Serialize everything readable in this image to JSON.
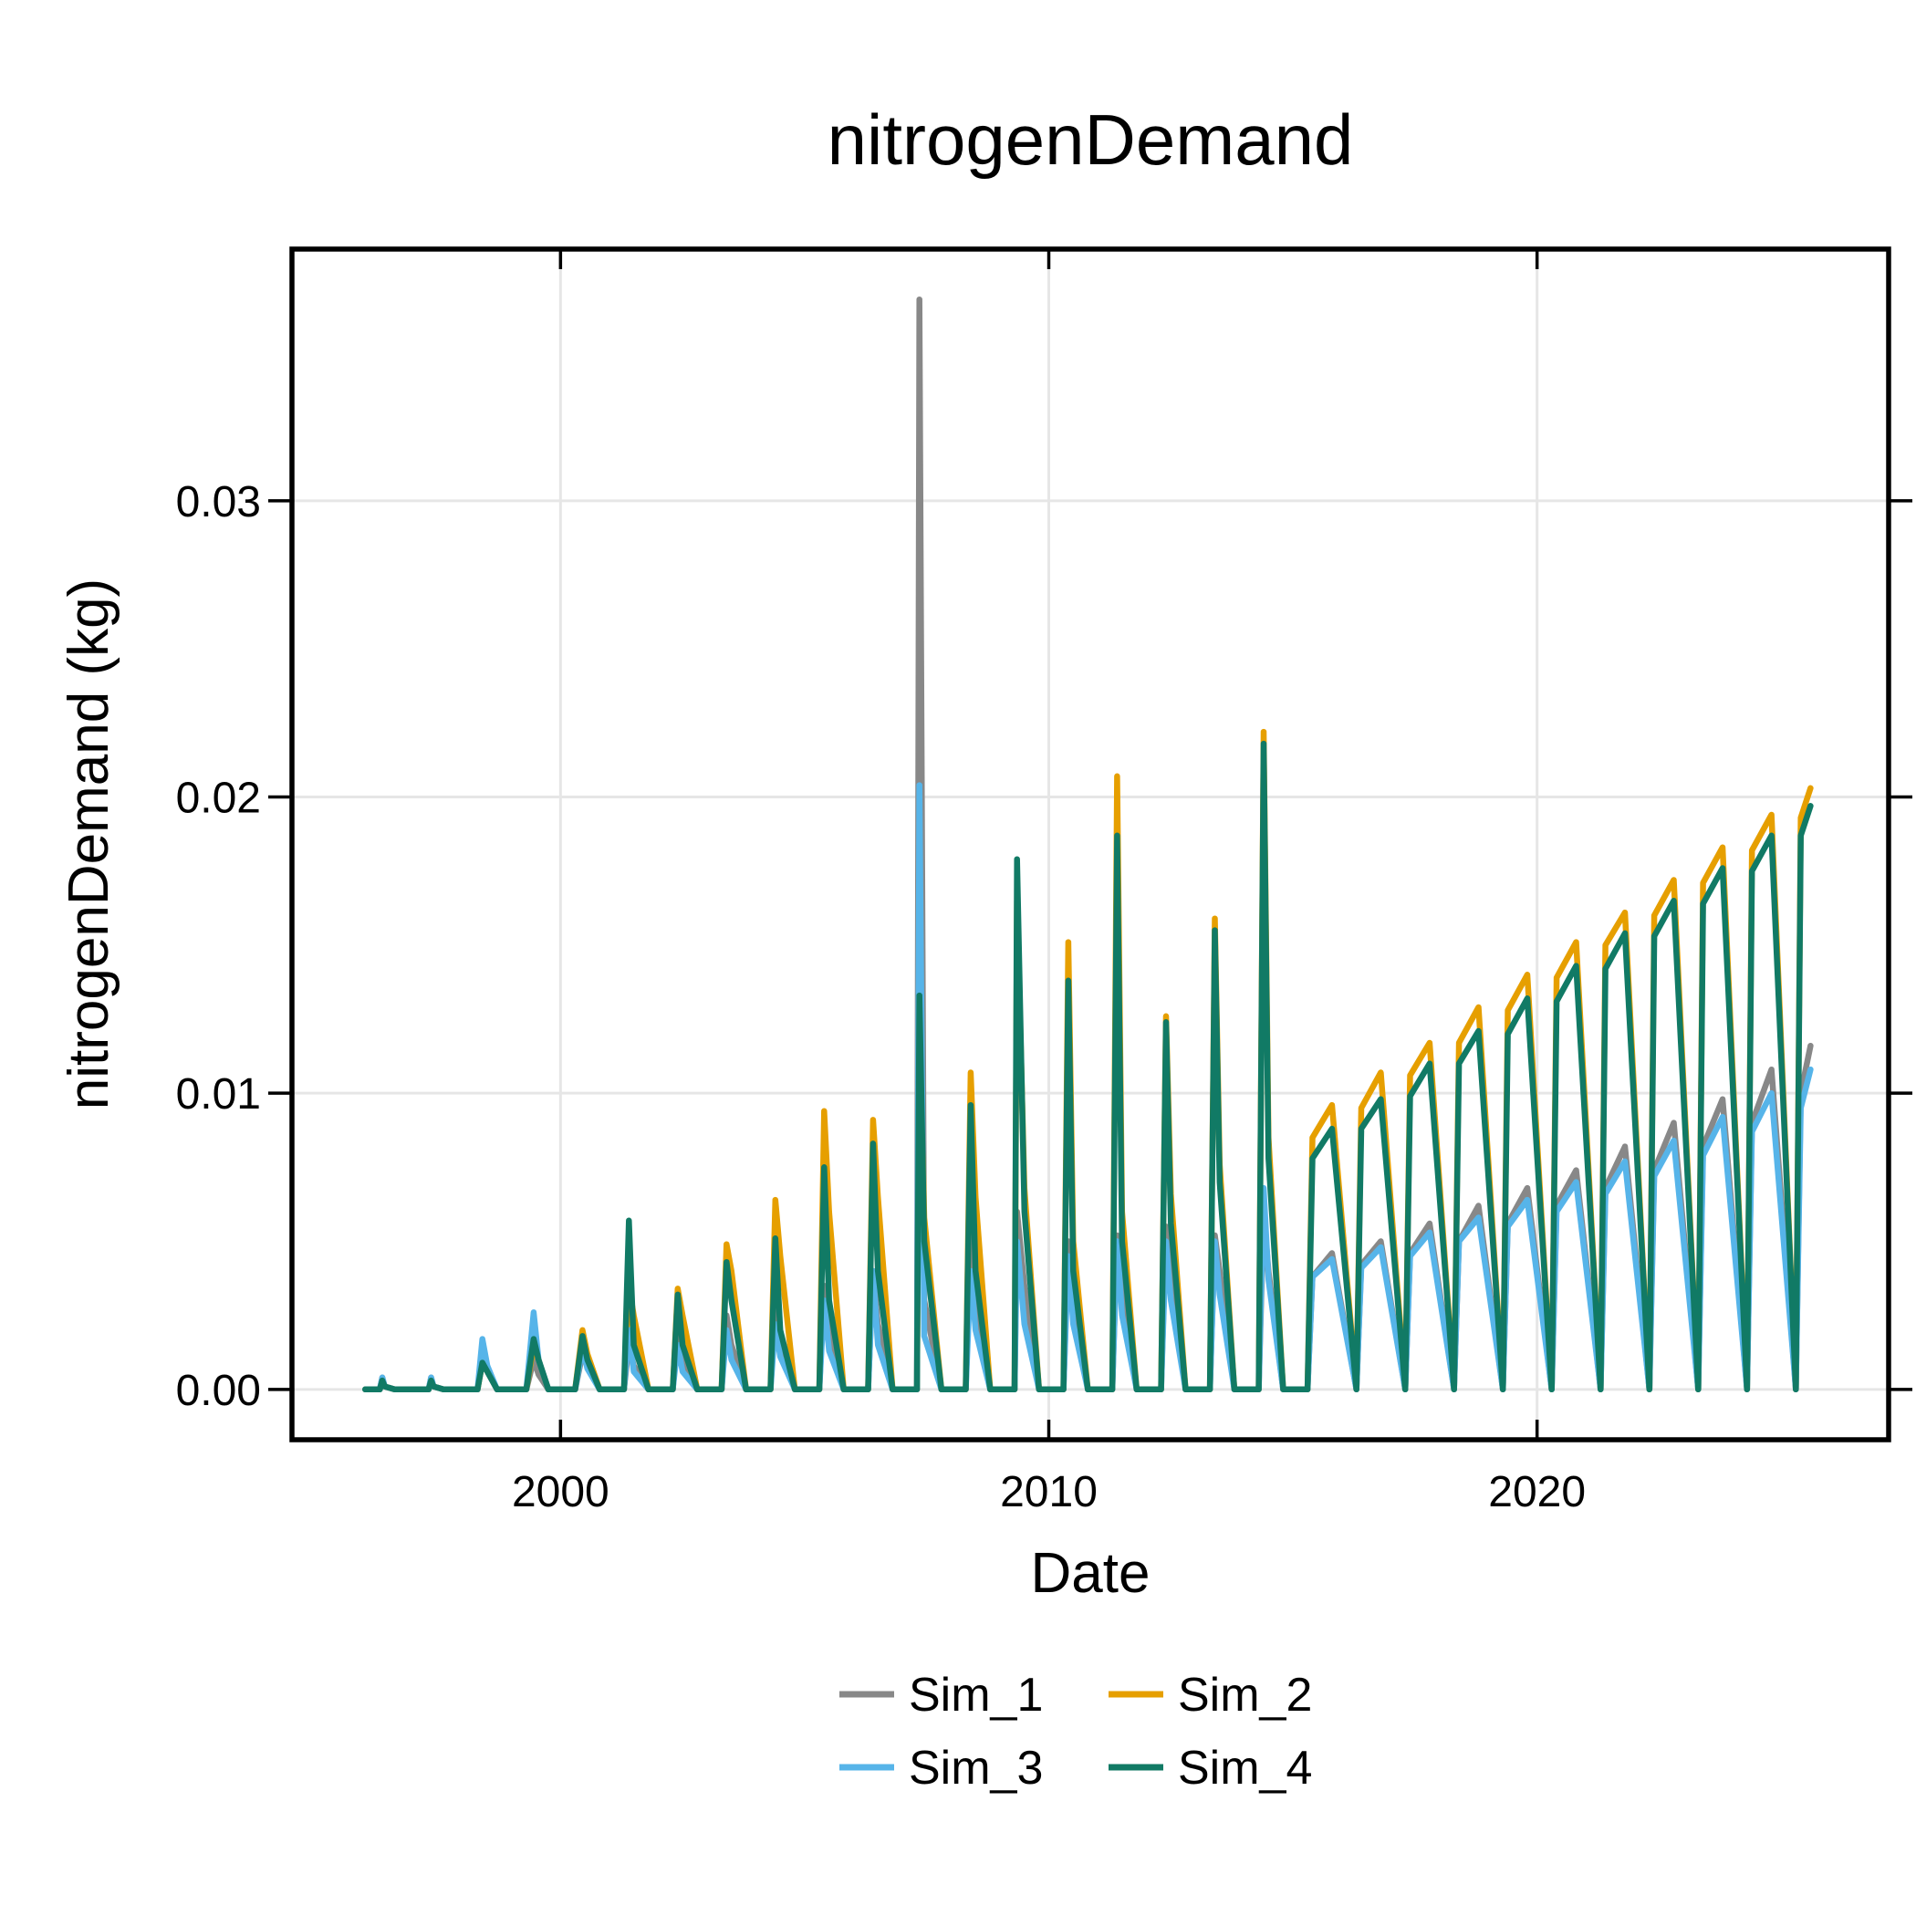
{
  "chart_data": {
    "type": "line",
    "title": "nitrogenDemand",
    "xlabel": "Date",
    "ylabel": "nitrogenDemand (kg)",
    "x_ticks": [
      2000,
      2010,
      2020
    ],
    "y_ticks": [
      "0.00",
      "0.01",
      "0.02",
      "0.03"
    ],
    "xlim": [
      1994.5,
      2027.2
    ],
    "ylim": [
      -0.0017,
      0.0385
    ],
    "grid": true,
    "legend_position": "bottom-center",
    "series": [
      {
        "name": "Sim_1",
        "color": "#888888",
        "x": [
          1996.0,
          1996.3,
          1996.35,
          1996.4,
          1996.6,
          1997.3,
          1997.35,
          1997.4,
          1997.6,
          1998.3,
          1998.4,
          1998.5,
          1998.7,
          1999.3,
          1999.45,
          1999.55,
          1999.75,
          2000.3,
          2000.45,
          2000.55,
          2000.8,
          2001.3,
          2001.4,
          2001.5,
          2001.8,
          2002.3,
          2002.4,
          2002.5,
          2002.8,
          2003.3,
          2003.4,
          2003.5,
          2003.8,
          2004.3,
          2004.4,
          2004.5,
          2004.8,
          2005.3,
          2005.4,
          2005.5,
          2005.8,
          2006.3,
          2006.4,
          2006.5,
          2006.8,
          2007.3,
          2007.35,
          2007.45,
          2007.8,
          2008.3,
          2008.4,
          2008.5,
          2008.8,
          2009.3,
          2009.35,
          2009.5,
          2009.8,
          2010.3,
          2010.4,
          2010.5,
          2010.8,
          2011.3,
          2011.4,
          2011.5,
          2011.8,
          2012.3,
          2012.4,
          2012.5,
          2012.8,
          2013.3,
          2013.4,
          2013.5,
          2013.8,
          2014.3,
          2014.4,
          2014.5,
          2014.8,
          2015.3,
          2015.4,
          2015.8,
          2016.3,
          2016.4,
          2016.8,
          2017.3,
          2017.4,
          2017.8,
          2018.3,
          2018.4,
          2018.8,
          2019.3,
          2019.4,
          2019.8,
          2020.3,
          2020.4,
          2020.8,
          2021.3,
          2021.4,
          2021.8,
          2022.3,
          2022.4,
          2022.8,
          2023.3,
          2023.4,
          2023.8,
          2024.3,
          2024.4,
          2024.8,
          2025.3,
          2025.4,
          2025.6
        ],
        "y": [
          0,
          0,
          0.0004,
          0.0001,
          0,
          0,
          0.0004,
          0.0001,
          0,
          0,
          0.001,
          0.0006,
          0,
          0,
          0.001,
          0.0005,
          0,
          0,
          0.0012,
          0.0008,
          0,
          0,
          0.0015,
          0.0008,
          0,
          0,
          0.002,
          0.001,
          0,
          0,
          0.0025,
          0.0015,
          0,
          0,
          0.003,
          0.0018,
          0,
          0,
          0.0035,
          0.002,
          0,
          0,
          0.004,
          0.0022,
          0,
          0,
          0.0368,
          0.003,
          0,
          0,
          0.0055,
          0.0028,
          0,
          0,
          0.006,
          0.0035,
          0,
          0,
          0.005,
          0.003,
          0,
          0,
          0.0052,
          0.0035,
          0,
          0,
          0.0055,
          0.0038,
          0,
          0,
          0.0052,
          0.004,
          0,
          0,
          0.006,
          0.004,
          0,
          0,
          0.0038,
          0.0046,
          0,
          0.0042,
          0.005,
          0,
          0.0046,
          0.0056,
          0,
          0.005,
          0.0062,
          0,
          0.0056,
          0.0068,
          0,
          0.0062,
          0.0074,
          0,
          0.0068,
          0.0082,
          0,
          0.0074,
          0.009,
          0,
          0.0082,
          0.0098,
          0,
          0.009,
          0.0108,
          0,
          0.01,
          0.0116
        ]
      },
      {
        "name": "Sim_2",
        "color": "#E69F00",
        "x": [
          1996.0,
          1996.3,
          1996.35,
          1996.4,
          1996.6,
          1997.3,
          1997.35,
          1997.4,
          1997.6,
          1998.3,
          1998.4,
          1998.5,
          1998.7,
          1999.3,
          1999.45,
          1999.55,
          1999.75,
          2000.3,
          2000.45,
          2000.55,
          2000.8,
          2001.3,
          2001.4,
          2001.5,
          2001.8,
          2002.3,
          2002.4,
          2002.5,
          2002.8,
          2003.3,
          2003.4,
          2003.5,
          2003.8,
          2004.3,
          2004.4,
          2004.5,
          2004.8,
          2005.3,
          2005.4,
          2005.5,
          2005.8,
          2006.3,
          2006.4,
          2006.5,
          2006.8,
          2007.3,
          2007.35,
          2007.45,
          2007.8,
          2008.3,
          2008.4,
          2008.5,
          2008.8,
          2009.3,
          2009.35,
          2009.5,
          2009.8,
          2010.3,
          2010.4,
          2010.5,
          2010.8,
          2011.3,
          2011.4,
          2011.5,
          2011.8,
          2012.3,
          2012.4,
          2012.5,
          2012.8,
          2013.3,
          2013.4,
          2013.5,
          2013.8,
          2014.3,
          2014.4,
          2014.5,
          2014.8,
          2015.3,
          2015.4,
          2015.8,
          2016.3,
          2016.4,
          2016.8,
          2017.3,
          2017.4,
          2017.8,
          2018.3,
          2018.4,
          2018.8,
          2019.3,
          2019.4,
          2019.8,
          2020.3,
          2020.4,
          2020.8,
          2021.3,
          2021.4,
          2021.8,
          2022.3,
          2022.4,
          2022.8,
          2023.3,
          2023.4,
          2023.8,
          2024.3,
          2024.4,
          2024.8,
          2025.3,
          2025.4,
          2025.6
        ],
        "y": [
          0,
          0,
          0.0003,
          0.0001,
          0,
          0,
          0.0003,
          0.0001,
          0,
          0,
          0.0009,
          0.0007,
          0,
          0,
          0.0015,
          0.001,
          0,
          0,
          0.002,
          0.0012,
          0,
          0,
          0.0035,
          0.0025,
          0,
          0,
          0.0034,
          0.0025,
          0,
          0,
          0.0049,
          0.004,
          0,
          0,
          0.0064,
          0.0045,
          0,
          0,
          0.0094,
          0.006,
          0,
          0,
          0.0091,
          0.0065,
          0,
          0,
          0.0125,
          0.0058,
          0,
          0,
          0.0107,
          0.0065,
          0,
          0,
          0.0165,
          0.0068,
          0,
          0,
          0.0151,
          0.005,
          0,
          0,
          0.0207,
          0.006,
          0,
          0,
          0.0126,
          0.0066,
          0,
          0,
          0.0159,
          0.0076,
          0,
          0,
          0.0222,
          0.0085,
          0,
          0,
          0.0085,
          0.0096,
          0,
          0.0095,
          0.0107,
          0,
          0.0106,
          0.0117,
          0,
          0.0117,
          0.0129,
          0,
          0.0128,
          0.014,
          0,
          0.0139,
          0.0151,
          0,
          0.015,
          0.0161,
          0,
          0.016,
          0.0172,
          0,
          0.0171,
          0.0183,
          0,
          0.0182,
          0.0194,
          0,
          0.0193,
          0.0203
        ]
      },
      {
        "name": "Sim_3",
        "color": "#56B4E9",
        "x": [
          1996.0,
          1996.3,
          1996.35,
          1996.4,
          1996.6,
          1997.3,
          1997.35,
          1997.4,
          1997.6,
          1998.3,
          1998.4,
          1998.5,
          1998.7,
          1999.3,
          1999.45,
          1999.55,
          1999.75,
          2000.3,
          2000.45,
          2000.55,
          2000.8,
          2001.3,
          2001.4,
          2001.5,
          2001.8,
          2002.3,
          2002.4,
          2002.5,
          2002.8,
          2003.3,
          2003.4,
          2003.5,
          2003.8,
          2004.3,
          2004.4,
          2004.5,
          2004.8,
          2005.3,
          2005.4,
          2005.5,
          2005.8,
          2006.3,
          2006.4,
          2006.5,
          2006.8,
          2007.3,
          2007.35,
          2007.45,
          2007.8,
          2008.3,
          2008.4,
          2008.5,
          2008.8,
          2009.3,
          2009.35,
          2009.5,
          2009.8,
          2010.3,
          2010.4,
          2010.5,
          2010.8,
          2011.3,
          2011.4,
          2011.5,
          2011.8,
          2012.3,
          2012.4,
          2012.5,
          2012.8,
          2013.3,
          2013.4,
          2013.5,
          2013.8,
          2014.3,
          2014.4,
          2014.5,
          2014.8,
          2015.3,
          2015.4,
          2015.8,
          2016.3,
          2016.4,
          2016.8,
          2017.3,
          2017.4,
          2017.8,
          2018.3,
          2018.4,
          2018.8,
          2019.3,
          2019.4,
          2019.8,
          2020.3,
          2020.4,
          2020.8,
          2021.3,
          2021.4,
          2021.8,
          2022.3,
          2022.4,
          2022.8,
          2023.3,
          2023.4,
          2023.8,
          2024.3,
          2024.4,
          2024.8,
          2025.3,
          2025.4,
          2025.6
        ],
        "y": [
          0,
          0,
          0.0004,
          0.0001,
          0,
          0,
          0.0004,
          0.0001,
          0,
          0,
          0.0017,
          0.0008,
          0,
          0,
          0.0026,
          0.001,
          0,
          0,
          0.0014,
          0.0007,
          0,
          0,
          0.002,
          0.0006,
          0,
          0,
          0.0015,
          0.0006,
          0,
          0,
          0.002,
          0.001,
          0,
          0,
          0.0022,
          0.0011,
          0,
          0,
          0.003,
          0.0013,
          0,
          0,
          0.004,
          0.0015,
          0,
          0,
          0.0204,
          0.0018,
          0,
          0,
          0.004,
          0.002,
          0,
          0,
          0.005,
          0.0022,
          0,
          0,
          0.0045,
          0.0022,
          0,
          0,
          0.005,
          0.0025,
          0,
          0,
          0.005,
          0.003,
          0,
          0,
          0.005,
          0.0032,
          0,
          0,
          0.0068,
          0.0037,
          0,
          0,
          0.0038,
          0.0044,
          0,
          0.0041,
          0.0048,
          0,
          0.0045,
          0.0053,
          0,
          0.005,
          0.0058,
          0,
          0.0055,
          0.0064,
          0,
          0.006,
          0.007,
          0,
          0.0066,
          0.0077,
          0,
          0.0072,
          0.0084,
          0,
          0.0079,
          0.0092,
          0,
          0.0087,
          0.01,
          0,
          0.0095,
          0.0108
        ]
      },
      {
        "name": "Sim_4",
        "color": "#117A65",
        "x": [
          1996.0,
          1996.3,
          1996.35,
          1996.4,
          1996.6,
          1997.3,
          1997.35,
          1997.4,
          1997.6,
          1998.3,
          1998.4,
          1998.5,
          1998.7,
          1999.3,
          1999.45,
          1999.55,
          1999.75,
          2000.3,
          2000.45,
          2000.55,
          2000.8,
          2001.3,
          2001.4,
          2001.5,
          2001.8,
          2002.3,
          2002.4,
          2002.5,
          2002.8,
          2003.3,
          2003.4,
          2003.5,
          2003.8,
          2004.3,
          2004.4,
          2004.5,
          2004.8,
          2005.3,
          2005.4,
          2005.5,
          2005.8,
          2006.3,
          2006.4,
          2006.5,
          2006.8,
          2007.3,
          2007.35,
          2007.45,
          2007.8,
          2008.3,
          2008.4,
          2008.5,
          2008.8,
          2009.3,
          2009.35,
          2009.5,
          2009.8,
          2010.3,
          2010.4,
          2010.5,
          2010.8,
          2011.3,
          2011.4,
          2011.5,
          2011.8,
          2012.3,
          2012.4,
          2012.5,
          2012.8,
          2013.3,
          2013.4,
          2013.5,
          2013.8,
          2014.3,
          2014.4,
          2014.5,
          2014.8,
          2015.3,
          2015.4,
          2015.8,
          2016.3,
          2016.4,
          2016.8,
          2017.3,
          2017.4,
          2017.8,
          2018.3,
          2018.4,
          2018.8,
          2019.3,
          2019.4,
          2019.8,
          2020.3,
          2020.4,
          2020.8,
          2021.3,
          2021.4,
          2021.8,
          2022.3,
          2022.4,
          2022.8,
          2023.3,
          2023.4,
          2023.8,
          2024.3,
          2024.4,
          2024.8,
          2025.3,
          2025.4,
          2025.6
        ],
        "y": [
          0,
          0,
          0.0003,
          0.0001,
          0,
          0,
          0.0003,
          0.0001,
          0,
          0,
          0.0009,
          0.0006,
          0,
          0,
          0.0017,
          0.001,
          0,
          0,
          0.0018,
          0.001,
          0,
          0,
          0.0057,
          0.0015,
          0,
          0,
          0.0032,
          0.0015,
          0,
          0,
          0.0043,
          0.003,
          0,
          0,
          0.0051,
          0.002,
          0,
          0,
          0.0075,
          0.003,
          0,
          0,
          0.0083,
          0.004,
          0,
          0,
          0.0133,
          0.005,
          0,
          0,
          0.0096,
          0.004,
          0,
          0,
          0.0179,
          0.006,
          0,
          0,
          0.0138,
          0.004,
          0,
          0,
          0.0187,
          0.005,
          0,
          0,
          0.0124,
          0.0056,
          0,
          0,
          0.0155,
          0.007,
          0,
          0,
          0.0218,
          0.0078,
          0,
          0,
          0.0078,
          0.0088,
          0,
          0.0088,
          0.0098,
          0,
          0.0099,
          0.011,
          0,
          0.011,
          0.0121,
          0,
          0.012,
          0.0132,
          0,
          0.0131,
          0.0143,
          0,
          0.0142,
          0.0154,
          0,
          0.0153,
          0.0165,
          0,
          0.0164,
          0.0176,
          0,
          0.0175,
          0.0187,
          0,
          0.0187,
          0.0197
        ]
      }
    ]
  }
}
